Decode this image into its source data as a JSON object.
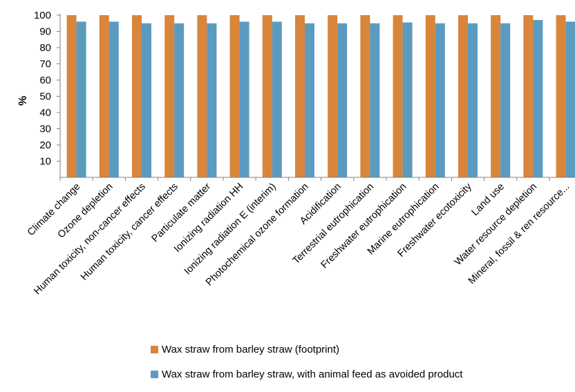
{
  "chart_data": {
    "type": "bar",
    "ylabel": "%",
    "xlabel": "",
    "title": "",
    "ylim": [
      0,
      100
    ],
    "yticks": [
      10,
      20,
      30,
      40,
      50,
      60,
      70,
      80,
      90,
      100
    ],
    "grid": false,
    "legend_position": "bottom",
    "categories": [
      "Climate change",
      "Ozone depletion",
      "Human toxicity, non-cancer effects",
      "Human toxicity, cancer effects",
      "Particulate matter",
      "Ionizing radiation HH",
      "Ionizing radiation E (interim)",
      "Photochemical ozone formation",
      "Acidification",
      "Terrestrial eutrophication",
      "Freshwater eutrophication",
      "Marine eutrophication",
      "Freshwater ecotoxicity",
      "Land use",
      "Water resource depletion",
      "Mineral, fossil & ren resource..."
    ],
    "series": [
      {
        "name": "Wax straw from barley straw (footprint)",
        "color": "#D9853B",
        "values": [
          100,
          100,
          100,
          100,
          100,
          100,
          100,
          100,
          100,
          100,
          100,
          100,
          100,
          100,
          100,
          100
        ]
      },
      {
        "name": "Wax straw from barley straw, with animal feed as avoided product",
        "color": "#5B9BBF",
        "values": [
          96,
          96,
          95,
          95,
          95,
          96,
          96,
          95,
          95,
          95,
          95.5,
          95,
          95,
          95,
          97,
          96
        ]
      }
    ]
  }
}
